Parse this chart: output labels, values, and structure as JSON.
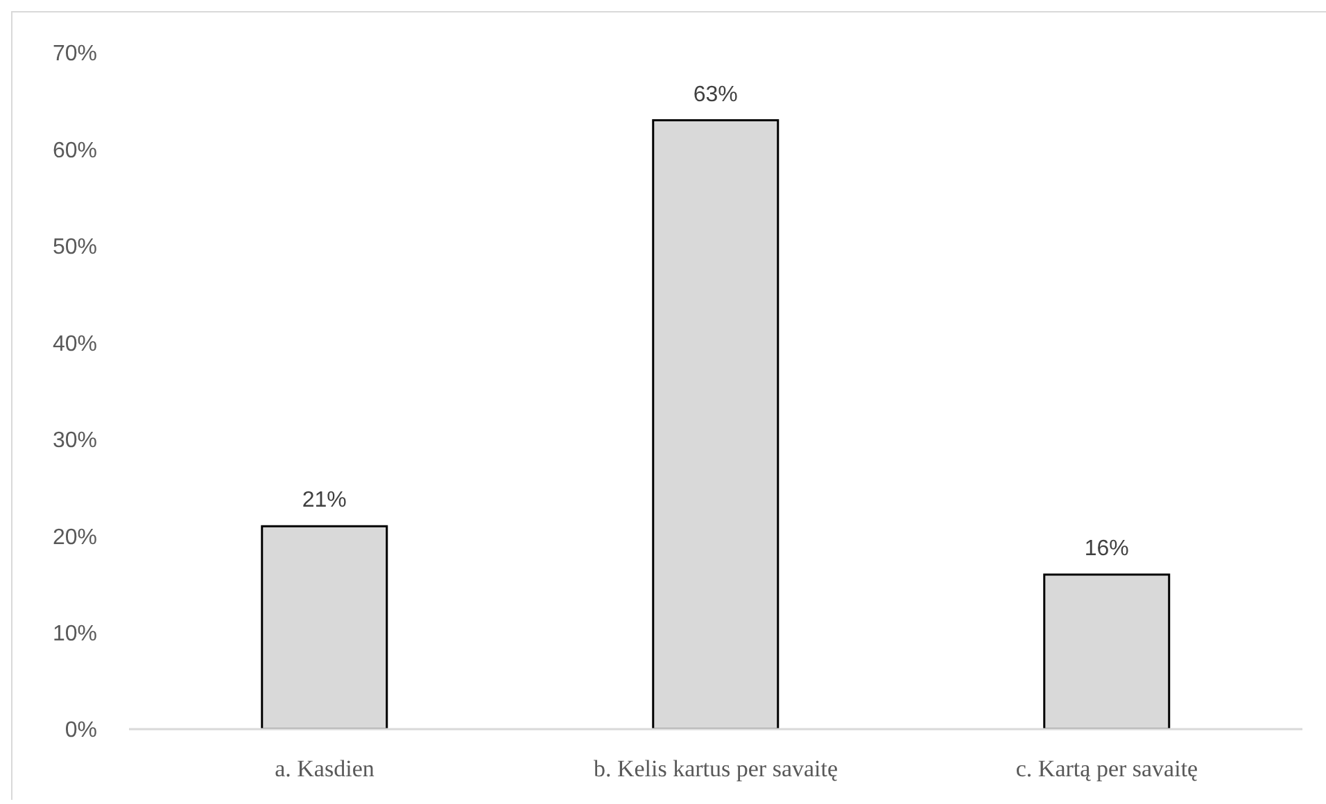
{
  "chart_data": {
    "type": "bar",
    "categories": [
      "a. Kasdien",
      "b. Kelis kartus per savaitę",
      "c. Kartą per savaitę"
    ],
    "values": [
      21,
      63,
      16
    ],
    "value_labels": [
      "21%",
      "63%",
      "16%"
    ],
    "color": "#d9d9d9",
    "ylim": [
      0,
      70
    ],
    "yticks": [
      {
        "value": 0,
        "label": "0%"
      },
      {
        "value": 10,
        "label": "10%"
      },
      {
        "value": 20,
        "label": "20%"
      },
      {
        "value": 30,
        "label": "30%"
      },
      {
        "value": 40,
        "label": "40%"
      },
      {
        "value": 50,
        "label": "50%"
      },
      {
        "value": 60,
        "label": "60%"
      },
      {
        "value": 70,
        "label": "70%"
      }
    ]
  }
}
